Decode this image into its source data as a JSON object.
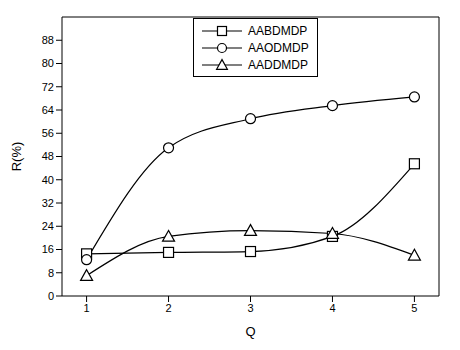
{
  "chart_data": {
    "type": "line",
    "x_label": "Q",
    "y_label": "R(%)",
    "x": [
      1,
      2,
      3,
      4,
      5
    ],
    "xlim": [
      0.7,
      5.3
    ],
    "xticks": [
      1,
      2,
      3,
      4,
      5
    ],
    "ylim": [
      0,
      96
    ],
    "yticks": [
      0,
      8,
      16,
      24,
      32,
      40,
      48,
      56,
      64,
      72,
      80,
      88
    ],
    "grid": false,
    "legend": "top",
    "series": [
      {
        "name": "AABDMDP",
        "color": "#000000",
        "marker": "square",
        "line_style": "solid",
        "values": [
          14.5,
          15,
          15.3,
          20.5,
          45.5
        ]
      },
      {
        "name": "AAODMDP",
        "color": "#000000",
        "marker": "circle",
        "line_style": "solid",
        "values": [
          12.5,
          51,
          61,
          65.5,
          68.5
        ]
      },
      {
        "name": "AADDMDP",
        "color": "#000000",
        "marker": "triangle",
        "line_style": "solid",
        "values": [
          7,
          20.5,
          22.5,
          21.5,
          14
        ]
      }
    ]
  }
}
